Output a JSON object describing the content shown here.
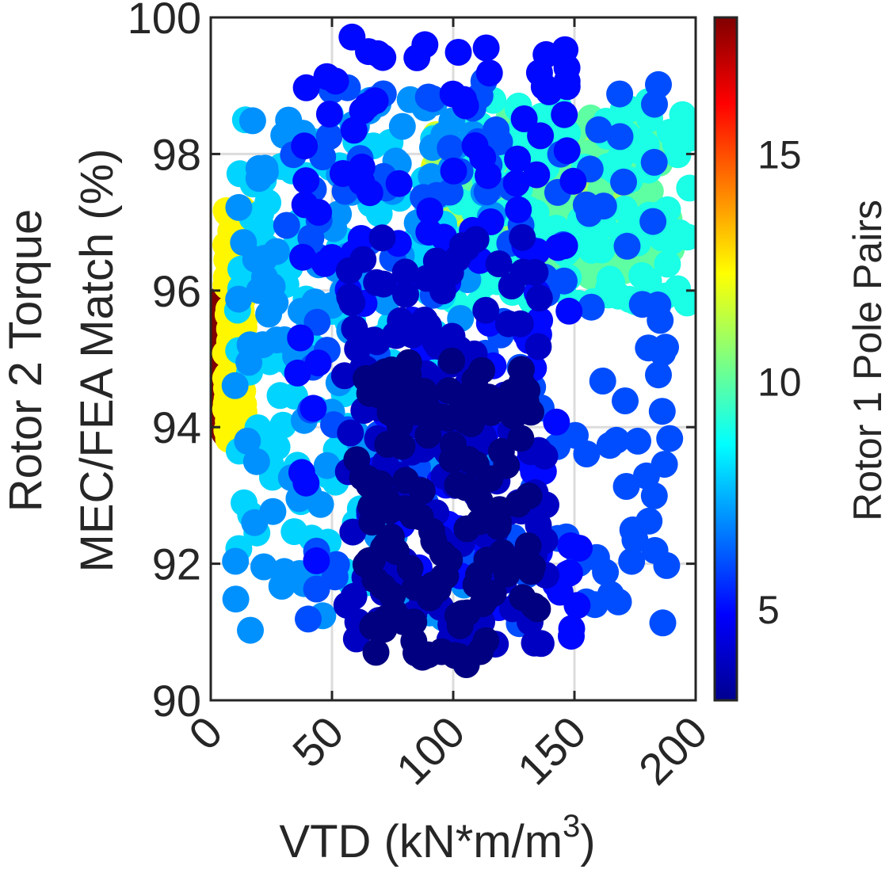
{
  "chart_data": {
    "type": "scatter",
    "title": "",
    "xlabel": "VTD (kN*m/m",
    "xlabel_sup": "3",
    "xlabel_close": ")",
    "ylabel_lines": [
      "Rotor 2 Torque",
      "MEC/FEA Match (%)"
    ],
    "xlim": [
      0,
      200
    ],
    "ylim": [
      90,
      100
    ],
    "xticks": [
      0,
      50,
      100,
      150,
      200
    ],
    "yticks": [
      90,
      92,
      94,
      96,
      98,
      100
    ],
    "grid": true,
    "colormap": "jet",
    "colorbar": {
      "label": "Rotor 1 Pole Pairs",
      "range": [
        3,
        18
      ],
      "ticks": [
        5,
        10,
        15
      ]
    },
    "clusters": [
      {
        "pole_pairs": 18,
        "x_range": [
          3,
          12
        ],
        "y_range": [
          93.9,
          96.0
        ]
      },
      {
        "pole_pairs": 12.5,
        "x_range": [
          6,
          14
        ],
        "y_range": [
          93.8,
          97.2
        ]
      },
      {
        "pole_pairs": 12,
        "x_range": [
          90,
          175
        ],
        "y_range": [
          97.0,
          98.4
        ]
      },
      {
        "pole_pairs": 11,
        "x_range": [
          90,
          180
        ],
        "y_range": [
          96.5,
          98.4
        ]
      },
      {
        "pole_pairs": 10,
        "x_range": [
          100,
          190
        ],
        "y_range": [
          96.2,
          98.6
        ]
      },
      {
        "pole_pairs": 9,
        "x_range": [
          100,
          198
        ],
        "y_range": [
          95.8,
          98.8
        ]
      },
      {
        "pole_pairs": 8,
        "x_range": [
          10,
          98
        ],
        "y_range": [
          91.6,
          98.6
        ]
      },
      {
        "pole_pairs": 7,
        "x_range": [
          10,
          118
        ],
        "y_range": [
          91.0,
          98.8
        ]
      },
      {
        "pole_pairs": 6,
        "x_range": [
          30,
          190
        ],
        "y_range": [
          91.1,
          99.1
        ]
      },
      {
        "pole_pairs": 5,
        "x_range": [
          35,
          152
        ],
        "y_range": [
          90.9,
          99.8
        ]
      },
      {
        "pole_pairs": 4,
        "x_range": [
          55,
          140
        ],
        "y_range": [
          90.8,
          96.8
        ]
      },
      {
        "pole_pairs": 3,
        "x_range": [
          60,
          135
        ],
        "y_range": [
          90.5,
          95.0
        ]
      }
    ]
  }
}
